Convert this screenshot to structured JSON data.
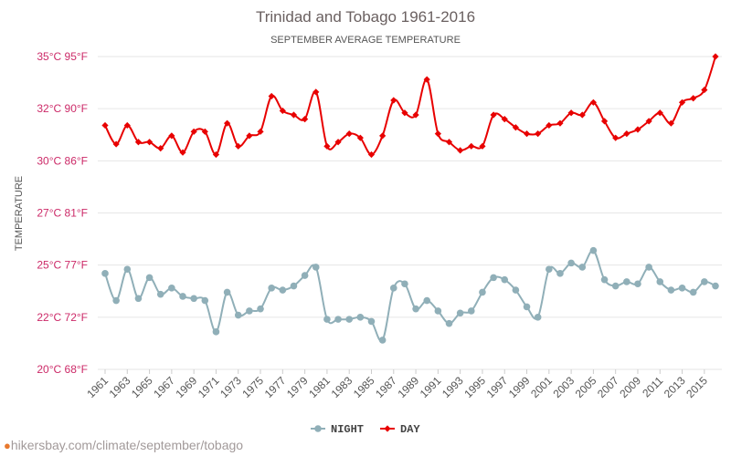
{
  "watermark": "hikersbay.com/climate/september/tobago",
  "chart_data": {
    "type": "line",
    "title": "Trinidad and Tobago 1961-2016",
    "subtitle": "SEPTEMBER AVERAGE TEMPERATURE",
    "ylabel": "TEMPERATURE",
    "xlabel": "",
    "ylim": [
      20,
      35
    ],
    "y_ticks": [
      {
        "value": 20,
        "label": "20°C 68°F"
      },
      {
        "value": 22.5,
        "label": "22°C 72°F"
      },
      {
        "value": 25,
        "label": "25°C 77°F"
      },
      {
        "value": 27.5,
        "label": "27°C 81°F"
      },
      {
        "value": 30,
        "label": "30°C 86°F"
      },
      {
        "value": 32.5,
        "label": "32°C 90°F"
      },
      {
        "value": 35,
        "label": "35°C 95°F"
      }
    ],
    "x": [
      1961,
      1962,
      1963,
      1964,
      1965,
      1966,
      1967,
      1968,
      1969,
      1970,
      1971,
      1972,
      1973,
      1974,
      1975,
      1976,
      1977,
      1978,
      1979,
      1980,
      1981,
      1982,
      1983,
      1984,
      1985,
      1986,
      1987,
      1988,
      1989,
      1990,
      1991,
      1992,
      1993,
      1994,
      1995,
      1996,
      1997,
      1998,
      1999,
      2000,
      2001,
      2002,
      2003,
      2004,
      2005,
      2006,
      2007,
      2008,
      2009,
      2010,
      2011,
      2012,
      2013,
      2014,
      2015,
      2016
    ],
    "x_tick_labels": [
      "1961",
      "1963",
      "1965",
      "1967",
      "1969",
      "1971",
      "1973",
      "1975",
      "1977",
      "1979",
      "1981",
      "1983",
      "1985",
      "1987",
      "1989",
      "1991",
      "1993",
      "1995",
      "1997",
      "1999",
      "2001",
      "2003",
      "2005",
      "2007",
      "2009",
      "2011",
      "2013",
      "2015"
    ],
    "legend_position": "bottom",
    "grid": true,
    "series": [
      {
        "name": "NIGHT",
        "color": "#90afb8",
        "values": [
          24.6,
          23.3,
          24.8,
          23.4,
          24.4,
          23.6,
          23.9,
          23.5,
          23.4,
          23.3,
          21.8,
          23.7,
          22.6,
          22.8,
          22.9,
          23.9,
          23.8,
          24.0,
          24.5,
          24.9,
          22.4,
          22.4,
          22.4,
          22.5,
          22.3,
          21.4,
          23.9,
          24.1,
          22.9,
          23.3,
          22.8,
          22.2,
          22.7,
          22.8,
          23.7,
          24.4,
          24.3,
          23.8,
          23.0,
          22.5,
          24.8,
          24.6,
          25.1,
          24.9,
          25.7,
          24.3,
          24.0,
          24.2,
          24.1,
          24.9,
          24.2,
          23.8,
          23.9,
          23.7,
          24.2,
          24.0
        ]
      },
      {
        "name": "DAY",
        "color": "#e80000",
        "values": [
          31.7,
          30.8,
          31.7,
          30.9,
          30.9,
          30.6,
          31.2,
          30.4,
          31.4,
          31.4,
          30.3,
          31.8,
          30.7,
          31.2,
          31.4,
          33.1,
          32.4,
          32.2,
          32.0,
          33.3,
          30.7,
          30.9,
          31.3,
          31.1,
          30.3,
          31.2,
          32.9,
          32.3,
          32.2,
          33.9,
          31.3,
          30.9,
          30.5,
          30.7,
          30.7,
          32.2,
          32.0,
          31.6,
          31.3,
          31.3,
          31.7,
          31.8,
          32.3,
          32.2,
          32.8,
          31.9,
          31.1,
          31.3,
          31.5,
          31.9,
          32.3,
          31.8,
          32.8,
          33.0,
          33.4,
          35.0
        ]
      }
    ]
  }
}
